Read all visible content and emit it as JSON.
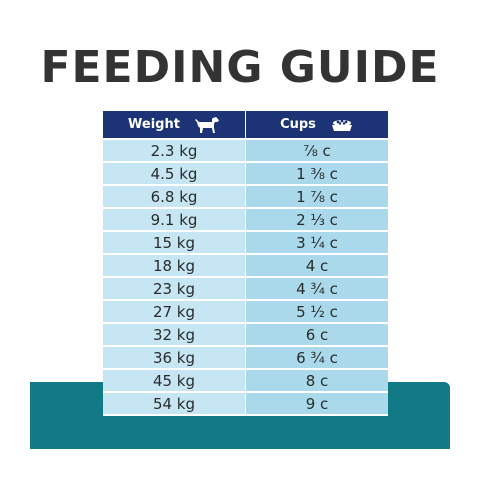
{
  "title": "FEEDING GUIDE",
  "table": {
    "headers": {
      "weight": "Weight",
      "cups": "Cups"
    },
    "icons": {
      "weight": "dog-icon",
      "cups": "food-bowl-icon"
    },
    "rows": [
      {
        "weight": "2.3 kg",
        "cups": "⅞ c"
      },
      {
        "weight": "4.5 kg",
        "cups": "1 ⅜ c"
      },
      {
        "weight": "6.8 kg",
        "cups": "1 ⅞ c"
      },
      {
        "weight": "9.1 kg",
        "cups": "2 ⅓ c"
      },
      {
        "weight": "15 kg",
        "cups": "3 ¼ c"
      },
      {
        "weight": "18 kg",
        "cups": "4 c"
      },
      {
        "weight": "23 kg",
        "cups": "4 ¾ c"
      },
      {
        "weight": "27 kg",
        "cups": "5 ½ c"
      },
      {
        "weight": "32 kg",
        "cups": "6 c"
      },
      {
        "weight": "36 kg",
        "cups": "6 ¾ c"
      },
      {
        "weight": "45 kg",
        "cups": "8 c"
      },
      {
        "weight": "54 kg",
        "cups": "9 c"
      }
    ]
  },
  "colors": {
    "title": "#333333",
    "header_bg": "#1c3376",
    "weight_cell": "#c6e6f3",
    "cups_cell": "#a9d9ea",
    "teal_band": "#127a86"
  }
}
